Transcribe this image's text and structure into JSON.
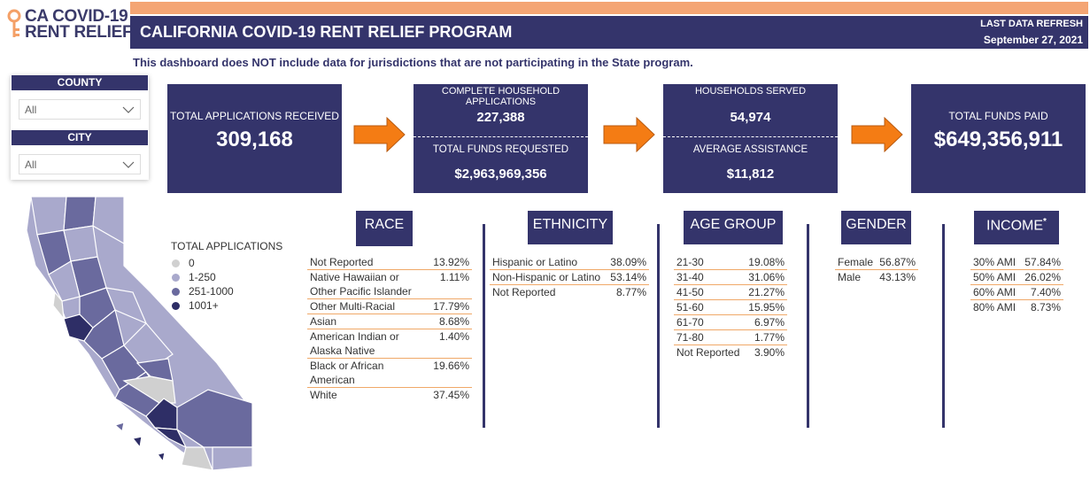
{
  "logo": {
    "line1": "CA COVID-19",
    "line2": "RENT RELIEF"
  },
  "header": {
    "title": "CALIFORNIA COVID-19 RENT RELIEF PROGRAM",
    "refresh_label": "LAST DATA REFRESH",
    "refresh_date": "September 27, 2021"
  },
  "note": "This dashboard does NOT include data for jurisdictions that are not participating in the State program.",
  "filters": [
    {
      "label": "COUNTY",
      "value": "All"
    },
    {
      "label": "CITY",
      "value": "All"
    }
  ],
  "kpis": [
    {
      "items": [
        {
          "label": "TOTAL APPLICATIONS RECEIVED",
          "value": "309,168"
        }
      ]
    },
    {
      "items": [
        {
          "label": "COMPLETE HOUSEHOLD APPLICATIONS",
          "value": "227,388"
        },
        {
          "label": "TOTAL FUNDS REQUESTED",
          "value": "$2,963,969,356"
        }
      ]
    },
    {
      "items": [
        {
          "label": "HOUSEHOLDS SERVED",
          "value": "54,974"
        },
        {
          "label": "AVERAGE ASSISTANCE",
          "value": "$11,812"
        }
      ]
    },
    {
      "items": [
        {
          "label": "TOTAL FUNDS PAID",
          "value": "$649,356,911"
        }
      ]
    }
  ],
  "map_legend": {
    "title": "TOTAL APPLICATIONS",
    "items": [
      "0",
      "1-250",
      "251-1000",
      "1001+"
    ]
  },
  "tables": [
    {
      "title": "RACE",
      "rows": [
        [
          "Not Reported",
          "13.92%"
        ],
        [
          "Native Hawaiian or Other Pacific Islander",
          "1.11%"
        ],
        [
          "Other Multi-Racial",
          "17.79%"
        ],
        [
          "Asian",
          "8.68%"
        ],
        [
          "American Indian or Alaska Native",
          "1.40%"
        ],
        [
          "Black or African American",
          "19.66%"
        ],
        [
          "White",
          "37.45%"
        ]
      ]
    },
    {
      "title": "ETHNICITY",
      "rows": [
        [
          "Hispanic or Latino",
          "38.09%"
        ],
        [
          "Non-Hispanic or Latino",
          "53.14%"
        ],
        [
          "Not Reported",
          "8.77%"
        ]
      ]
    },
    {
      "title": "AGE GROUP",
      "rows": [
        [
          "21-30",
          "19.08%"
        ],
        [
          "31-40",
          "31.06%"
        ],
        [
          "41-50",
          "21.27%"
        ],
        [
          "51-60",
          "15.95%"
        ],
        [
          "61-70",
          "6.97%"
        ],
        [
          "71-80",
          "1.77%"
        ],
        [
          "Not Reported",
          "3.90%"
        ]
      ]
    },
    {
      "title": "GENDER",
      "rows": [
        [
          "Female",
          "56.87%"
        ],
        [
          "Male",
          "43.13%"
        ]
      ]
    },
    {
      "title": "INCOME",
      "title_mark": "*",
      "rows": [
        [
          "30% AMI",
          "57.84%"
        ],
        [
          "50% AMI",
          "26.02%"
        ],
        [
          "60% AMI",
          "7.40%"
        ],
        [
          "80% AMI",
          "8.73%"
        ]
      ]
    }
  ]
}
